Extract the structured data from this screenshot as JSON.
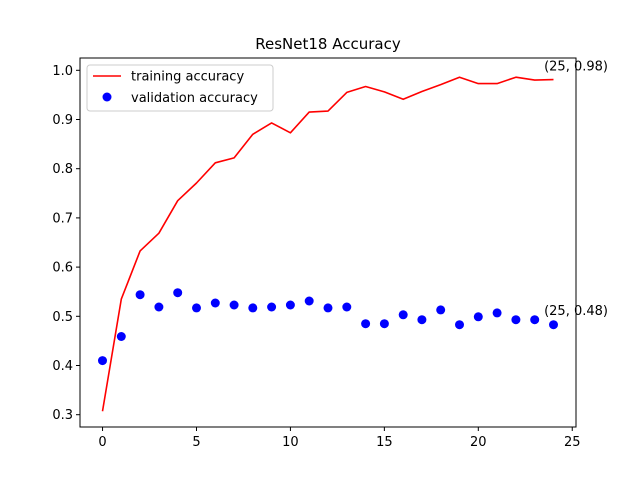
{
  "chart_data": {
    "type": "line",
    "title": "ResNet18 Accuracy",
    "xlabel": "",
    "ylabel": "",
    "xlim": [
      -1.2,
      25.2
    ],
    "ylim": [
      0.275,
      1.025
    ],
    "x_ticks": [
      0,
      5,
      10,
      15,
      20,
      25
    ],
    "y_ticks": [
      0.3,
      0.4,
      0.5,
      0.6,
      0.7,
      0.8,
      0.9,
      1.0
    ],
    "x_tick_labels": [
      "0",
      "5",
      "10",
      "15",
      "20",
      "25"
    ],
    "y_tick_labels": [
      "0.3",
      "0.4",
      "0.5",
      "0.6",
      "0.7",
      "0.8",
      "0.9",
      "1.0"
    ],
    "legend_position": "top-left",
    "grid": false,
    "x": [
      0,
      1,
      2,
      3,
      4,
      5,
      6,
      7,
      8,
      9,
      10,
      11,
      12,
      13,
      14,
      15,
      16,
      17,
      18,
      19,
      20,
      21,
      22,
      23,
      24
    ],
    "series": [
      {
        "name": "training accuracy",
        "style": "line",
        "color": "#ff0000",
        "values": [
          0.307,
          0.535,
          0.633,
          0.669,
          0.735,
          0.771,
          0.812,
          0.822,
          0.87,
          0.893,
          0.873,
          0.915,
          0.917,
          0.955,
          0.967,
          0.956,
          0.941,
          0.957,
          0.971,
          0.986,
          0.973,
          0.973,
          0.986,
          0.98,
          0.981
        ]
      },
      {
        "name": "validation accuracy",
        "style": "points",
        "color": "#0000ff",
        "values": [
          0.41,
          0.459,
          0.544,
          0.519,
          0.548,
          0.517,
          0.527,
          0.523,
          0.517,
          0.519,
          0.523,
          0.531,
          0.517,
          0.519,
          0.485,
          0.485,
          0.503,
          0.493,
          0.513,
          0.483,
          0.499,
          0.507,
          0.493,
          0.493,
          0.483
        ]
      }
    ],
    "annotations": [
      {
        "text": "(25, 0.98)",
        "x": 23.5,
        "y": 1.0
      },
      {
        "text": "(25, 0.48)",
        "x": 23.5,
        "y": 0.503
      }
    ]
  }
}
